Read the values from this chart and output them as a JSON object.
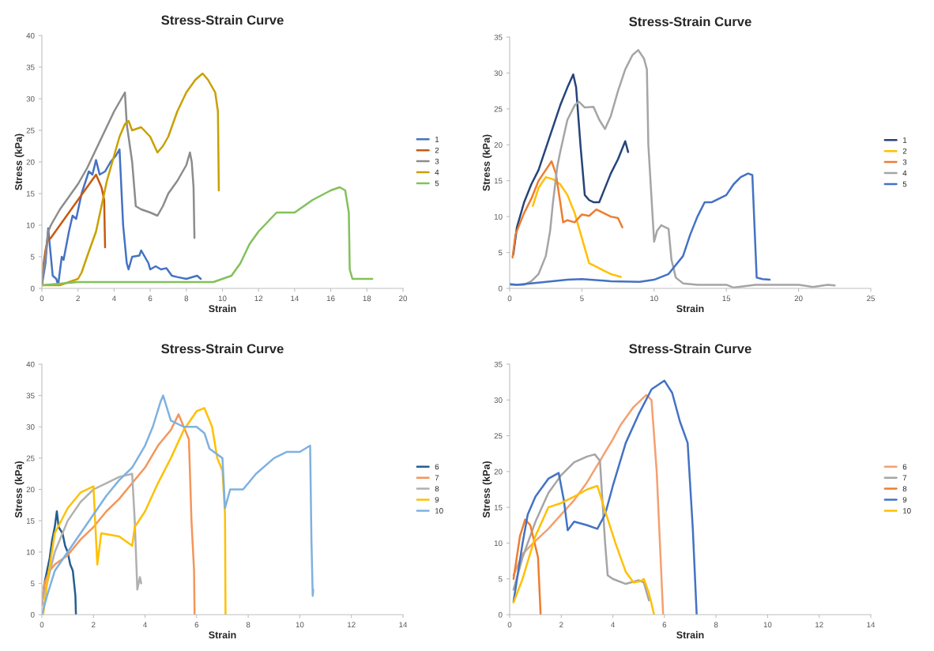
{
  "chart_data": [
    {
      "type": "line",
      "title": "Stress-Strain Curve",
      "xlabel": "Strain",
      "ylabel": "Stress (kPa)",
      "xlim": [
        0,
        20
      ],
      "xticks": [
        0,
        2,
        4,
        6,
        8,
        10,
        12,
        14,
        16,
        18,
        20
      ],
      "ylim": [
        0,
        40
      ],
      "yticks": [
        0,
        5,
        10,
        15,
        20,
        25,
        30,
        35,
        40
      ],
      "grid": false,
      "legend": "right",
      "marker": "none",
      "line_style": "solid",
      "series": [
        {
          "name": "1",
          "color": "#4472c4",
          "x": [
            0,
            0.2,
            0.35,
            0.5,
            0.6,
            0.8,
            0.9,
            1.1,
            1.2,
            1.5,
            1.7,
            1.9,
            2.2,
            2.6,
            2.8,
            3,
            3.2,
            3.5,
            3.8,
            4.1,
            4.3,
            4.5,
            4.7,
            4.8,
            5,
            5.4,
            5.5,
            5.7,
            5.9,
            6,
            6.3,
            6.6,
            6.9,
            7.2,
            7.5,
            8,
            8.6,
            8.8
          ],
          "values": [
            0.5,
            4,
            9.5,
            5,
            2,
            1.5,
            0.5,
            5,
            4.5,
            9,
            11.5,
            11,
            15,
            18.5,
            18,
            20.3,
            18,
            18.5,
            20,
            21,
            22,
            10,
            4,
            3,
            5,
            5.2,
            6,
            5,
            4,
            3,
            3.5,
            3,
            3.2,
            2,
            1.8,
            1.5,
            2,
            1.5
          ]
        },
        {
          "name": "2",
          "color": "#c55a11",
          "x": [
            0,
            0.1,
            0.2,
            0.3,
            0.5,
            1,
            1.5,
            2,
            2.5,
            3,
            3.3,
            3.45,
            3.5
          ],
          "values": [
            0.5,
            4,
            6,
            7.5,
            8,
            10,
            12,
            14,
            16,
            18,
            16,
            14,
            6.5
          ]
        },
        {
          "name": "3",
          "color": "#8c8c8c",
          "x": [
            0,
            0.2,
            0.35,
            0.5,
            1,
            1.5,
            2,
            2.5,
            3,
            3.5,
            4,
            4.5,
            4.6,
            4.7,
            4.8,
            5,
            5.2,
            5.5,
            6,
            6.4,
            6.7,
            7,
            7.5,
            8,
            8.2,
            8.3,
            8.4,
            8.45
          ],
          "values": [
            1,
            5,
            9,
            10,
            12.5,
            14.5,
            16.5,
            19,
            22,
            25,
            28,
            30.5,
            31,
            26,
            24,
            20,
            13,
            12.5,
            12,
            11.5,
            13,
            15,
            17,
            19.5,
            21.5,
            20,
            16,
            8
          ]
        },
        {
          "name": "4",
          "color": "#c9a000",
          "x": [
            0,
            1,
            1.5,
            2,
            2.2,
            2.5,
            3,
            3.3,
            3.6,
            4,
            4.3,
            4.6,
            4.8,
            5,
            5.5,
            6,
            6.4,
            6.7,
            7,
            7.5,
            8,
            8.5,
            8.9,
            9.2,
            9.6,
            9.75,
            9.8
          ],
          "values": [
            0.5,
            0.5,
            1,
            1.5,
            2.5,
            5,
            9,
            13,
            17,
            21,
            24,
            26,
            26.5,
            25,
            25.5,
            24,
            21.5,
            22.5,
            24,
            28,
            31,
            33,
            34,
            33,
            31,
            28,
            15.5
          ]
        },
        {
          "name": "5",
          "color": "#82c15a",
          "x": [
            0,
            2,
            4,
            6,
            8,
            9.5,
            10,
            10.5,
            11,
            11.5,
            12,
            12.5,
            13,
            13.5,
            14,
            15,
            16,
            16.5,
            16.8,
            17,
            17.05,
            17.2,
            18,
            18.3
          ],
          "values": [
            0.5,
            1,
            1,
            1,
            1,
            1,
            1.5,
            2,
            4,
            7,
            9,
            10.5,
            12,
            12,
            12,
            14,
            15.5,
            16,
            15.5,
            12,
            3,
            1.5,
            1.5,
            1.5
          ]
        }
      ]
    },
    {
      "type": "line",
      "title": "Stress-Strain Curve",
      "xlabel": "Strain",
      "ylabel": "Stress (kPa)",
      "xlim": [
        0,
        25
      ],
      "xticks": [
        0,
        5,
        10,
        15,
        20,
        25
      ],
      "ylim": [
        0,
        35
      ],
      "yticks": [
        0,
        5,
        10,
        15,
        20,
        25,
        30,
        35
      ],
      "grid": false,
      "legend": "right",
      "marker": "none",
      "line_style": "solid",
      "series": [
        {
          "name": "1",
          "color": "#264478",
          "x": [
            0.25,
            0.5,
            1,
            1.5,
            2,
            2.5,
            3,
            3.5,
            4,
            4.4,
            4.6,
            4.9,
            5.2,
            5.5,
            5.8,
            6.2,
            6.5,
            7,
            7.5,
            8,
            8.2
          ],
          "values": [
            4.7,
            8.5,
            12,
            14.5,
            16.5,
            19.5,
            22.5,
            25.5,
            28,
            29.8,
            28,
            20,
            13,
            12.3,
            12,
            12,
            13.5,
            16,
            18,
            20.5,
            19
          ]
        },
        {
          "name": "2",
          "color": "#ffc000",
          "x": [
            1.6,
            2,
            2.5,
            3,
            3.5,
            4,
            4.5,
            5,
            5.5,
            6,
            6.5,
            7,
            7.7
          ],
          "values": [
            11.5,
            14,
            15.5,
            15.2,
            14.5,
            13,
            10.5,
            7,
            3.5,
            3,
            2.5,
            2,
            1.6
          ]
        },
        {
          "name": "3",
          "color": "#ed7d31",
          "x": [
            0.2,
            0.4,
            1,
            1.5,
            2,
            2.5,
            2.9,
            3.2,
            3.5,
            3.7,
            4,
            4.5,
            5,
            5.5,
            6,
            6.5,
            7,
            7.5,
            7.8
          ],
          "values": [
            4.3,
            7.5,
            10.5,
            12.5,
            15,
            16.5,
            17.7,
            16,
            12,
            9.2,
            9.5,
            9.2,
            10.3,
            10.1,
            11,
            10.5,
            10,
            9.8,
            8.5
          ]
        },
        {
          "name": "4",
          "color": "#a5a5a5",
          "x": [
            0,
            1,
            1.5,
            2,
            2.5,
            2.8,
            3,
            3.3,
            3.5,
            4,
            4.5,
            4.8,
            5.2,
            5.8,
            6.2,
            6.6,
            7,
            7.5,
            8,
            8.5,
            8.9,
            9.3,
            9.5,
            9.6,
            10,
            10.2,
            10.5,
            10.8,
            11,
            11.2,
            11.5,
            12,
            13,
            15,
            15.5,
            17,
            20,
            21,
            22,
            22.5
          ],
          "values": [
            0.5,
            0.5,
            1,
            2,
            4.5,
            8,
            12,
            17,
            19,
            23.5,
            25.5,
            26,
            25.2,
            25.3,
            23.5,
            22.2,
            24,
            27.5,
            30.5,
            32.5,
            33.2,
            32,
            30.5,
            20,
            6.5,
            8,
            8.8,
            8.5,
            8.3,
            4,
            1.5,
            0.7,
            0.5,
            0.5,
            0.1,
            0.5,
            0.5,
            0.2,
            0.5,
            0.4
          ]
        },
        {
          "name": "5",
          "color": "#4472c4",
          "x": [
            0,
            0.5,
            2,
            4,
            5,
            7,
            9,
            10,
            11,
            12,
            12.5,
            13,
            13.5,
            14,
            14.5,
            15,
            15.5,
            16,
            16.5,
            16.8,
            17.1,
            17.5,
            18
          ],
          "values": [
            0.6,
            0.5,
            0.8,
            1.2,
            1.3,
            1,
            0.9,
            1.2,
            2,
            4.5,
            7.5,
            10,
            12,
            12,
            12.5,
            13,
            14.5,
            15.5,
            16,
            15.8,
            1.5,
            1.3,
            1.2
          ]
        }
      ]
    },
    {
      "type": "line",
      "title": "Stress-Strain Curve",
      "xlabel": "Strain",
      "ylabel": "Stress (kPa)",
      "xlim": [
        0,
        14
      ],
      "xticks": [
        0,
        2,
        4,
        6,
        8,
        10,
        12,
        14
      ],
      "ylim": [
        0,
        40
      ],
      "yticks": [
        0,
        5,
        10,
        15,
        20,
        25,
        30,
        35,
        40
      ],
      "grid": false,
      "legend": "right",
      "marker": "none",
      "line_style": "solid",
      "series": [
        {
          "name": "6",
          "color": "#255e91",
          "x": [
            0,
            0.1,
            0.2,
            0.3,
            0.4,
            0.5,
            0.58,
            0.65,
            0.8,
            0.9,
            1,
            1.1,
            1.2,
            1.3,
            1.32
          ],
          "values": [
            1.5,
            5,
            7,
            9,
            12,
            14,
            16.5,
            14,
            13,
            11,
            10,
            8,
            7,
            3,
            0
          ]
        },
        {
          "name": "7",
          "color": "#f4955a",
          "x": [
            0,
            0.1,
            0.3,
            0.5,
            1,
            1.5,
            2,
            2.5,
            3,
            3.5,
            4,
            4.5,
            5,
            5.3,
            5.5,
            5.7,
            5.8,
            5.9,
            5.92
          ],
          "values": [
            1.5,
            5,
            7,
            8,
            9.5,
            12,
            14,
            16.5,
            18.5,
            21,
            23.5,
            27,
            29.5,
            32,
            30,
            28,
            15,
            7,
            0
          ]
        },
        {
          "name": "8",
          "color": "#b0b0b0",
          "x": [
            0,
            0.2,
            0.5,
            1,
            1.5,
            2,
            2.5,
            3,
            3.5,
            3.6,
            3.7,
            3.8,
            3.85
          ],
          "values": [
            2,
            5,
            10,
            15,
            18,
            20,
            21,
            22,
            22.5,
            15,
            4,
            6,
            5
          ]
        },
        {
          "name": "9",
          "color": "#ffc000",
          "x": [
            0.05,
            0.2,
            0.5,
            1,
            1.5,
            2,
            2.1,
            2.15,
            2.3,
            3,
            3.5,
            3.6,
            4,
            4.5,
            5,
            5.5,
            6,
            6.3,
            6.6,
            6.8,
            7,
            7.1,
            7.12
          ],
          "values": [
            0,
            5,
            13,
            17,
            19.5,
            20.5,
            12,
            8,
            13,
            12.5,
            11,
            14,
            16.5,
            21,
            25,
            29.5,
            32.5,
            33,
            30,
            25,
            23,
            16,
            0
          ]
        },
        {
          "name": "10",
          "color": "#7fb1e0",
          "x": [
            0,
            0.2,
            0.5,
            1,
            1.5,
            2,
            2.5,
            3,
            3.5,
            4,
            4.3,
            4.6,
            4.7,
            5,
            5.5,
            6,
            6.3,
            6.5,
            7,
            7.1,
            7.3,
            7.8,
            8.3,
            9,
            9.5,
            10,
            10.4,
            10.45,
            10.5,
            10.52
          ],
          "values": [
            0,
            3,
            7,
            10,
            13,
            16,
            19,
            21.5,
            23.5,
            27,
            30,
            34,
            35,
            31,
            30,
            30,
            29,
            26.5,
            25,
            17,
            20,
            20,
            22.5,
            25,
            26,
            26,
            27,
            12,
            3,
            4
          ]
        }
      ]
    },
    {
      "type": "line",
      "title": "Stress-Strain Curve",
      "xlabel": "Strain",
      "ylabel": "Stress (kPa)",
      "xlim": [
        0,
        14
      ],
      "xticks": [
        0,
        2,
        4,
        6,
        8,
        10,
        12,
        14
      ],
      "ylim": [
        0,
        35
      ],
      "yticks": [
        0,
        5,
        10,
        15,
        20,
        25,
        30,
        35
      ],
      "grid": false,
      "legend": "right",
      "marker": "none",
      "line_style": "solid",
      "series": [
        {
          "name": "6",
          "color": "#f4a070",
          "x": [
            0.15,
            0.5,
            1,
            1.5,
            2,
            2.5,
            3,
            3.5,
            4,
            4.3,
            4.8,
            5.3,
            5.5,
            5.7,
            5.95
          ],
          "values": [
            5.5,
            8.5,
            10.3,
            12,
            14,
            16,
            18.5,
            21.5,
            24.5,
            26.5,
            29,
            30.7,
            30,
            20,
            0
          ]
        },
        {
          "name": "7",
          "color": "#a5a5a5",
          "x": [
            0.15,
            0.5,
            1,
            1.5,
            2,
            2.5,
            3,
            3.3,
            3.5,
            3.7,
            3.8,
            4,
            4.5,
            5,
            5.2,
            5.4
          ],
          "values": [
            3.5,
            8,
            13,
            17,
            19.5,
            21.3,
            22.1,
            22.4,
            21.5,
            10,
            5.5,
            5,
            4.3,
            4.8,
            4.5,
            2
          ]
        },
        {
          "name": "8",
          "color": "#ed7d31",
          "x": [
            0.15,
            0.4,
            0.6,
            0.8,
            1.1,
            1.2
          ],
          "values": [
            5,
            11,
            13.3,
            12.5,
            8,
            0
          ]
        },
        {
          "name": "9",
          "color": "#4472c4",
          "x": [
            0.15,
            0.5,
            0.7,
            1,
            1.5,
            1.9,
            2.1,
            2.25,
            2.5,
            3,
            3.4,
            3.7,
            4,
            4.5,
            5,
            5.5,
            6,
            6.3,
            6.6,
            6.9,
            7.1,
            7.25
          ],
          "values": [
            1.8,
            10,
            14,
            16.5,
            19,
            19.8,
            16,
            11.8,
            13,
            12.5,
            12,
            14,
            18,
            24,
            28,
            31.5,
            32.7,
            31,
            27,
            24,
            12,
            0
          ]
        },
        {
          "name": "10",
          "color": "#ffc000",
          "x": [
            0.15,
            0.5,
            1,
            1.5,
            2,
            2.5,
            3,
            3.4,
            3.7,
            4.1,
            4.5,
            4.8,
            5.1,
            5.2,
            5.4,
            5.6
          ],
          "values": [
            1.7,
            5,
            11,
            15,
            15.6,
            16.5,
            17.5,
            18,
            14.5,
            10,
            6,
            4.5,
            4.7,
            5,
            3,
            0
          ]
        }
      ]
    }
  ]
}
